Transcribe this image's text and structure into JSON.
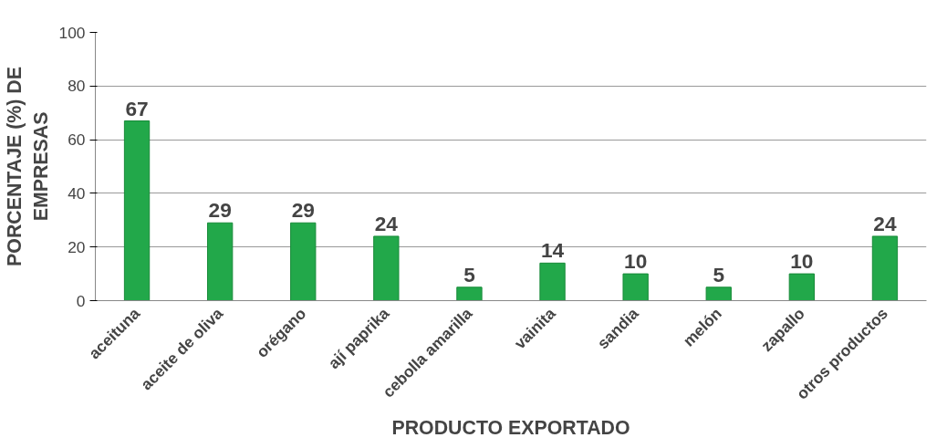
{
  "chart_data": {
    "type": "bar",
    "xlabel": "PRODUCTO EXPORTADO",
    "ylabel": "PORCENTAJE (%) DE EMPRESAS",
    "categories": [
      "aceituna",
      "aceite de oliva",
      "orégano",
      "ají paprika",
      "cebolla amarilla",
      "vainita",
      "sandia",
      "melón",
      "zapallo",
      "otros productos"
    ],
    "values": [
      67,
      29,
      29,
      24,
      5,
      14,
      10,
      5,
      10,
      24
    ],
    "color": "#22a84a",
    "ylim": [
      0,
      100
    ],
    "yticks": [
      0,
      20,
      40,
      60,
      80,
      100
    ],
    "grid": "y",
    "data_labels": true
  }
}
